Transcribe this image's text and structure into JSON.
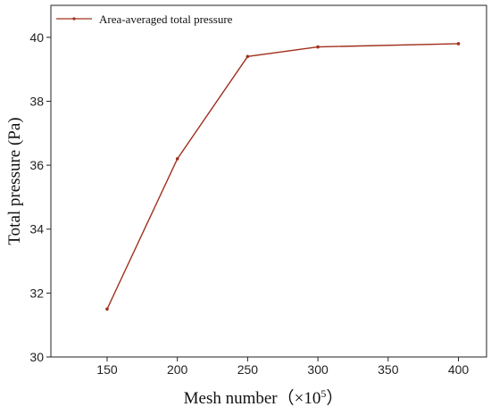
{
  "chart_data": {
    "type": "line",
    "title": "",
    "xlabel": "Mesh number",
    "xlabel_unit": "（×10",
    "xlabel_exp": "5",
    "xlabel_close": "）",
    "ylabel": "Total pressure (Pa)",
    "xlim": [
      110,
      420
    ],
    "ylim": [
      30,
      41
    ],
    "xticks": [
      150,
      200,
      250,
      300,
      350,
      400
    ],
    "yticks": [
      30,
      32,
      34,
      36,
      38,
      40
    ],
    "grid": false,
    "legend_position": "top-left",
    "series": [
      {
        "name": "Area-averaged total pressure",
        "color": "#a0301c",
        "x": [
          150,
          200,
          250,
          300,
          400
        ],
        "y": [
          31.5,
          36.2,
          39.4,
          39.7,
          39.8
        ]
      }
    ]
  }
}
